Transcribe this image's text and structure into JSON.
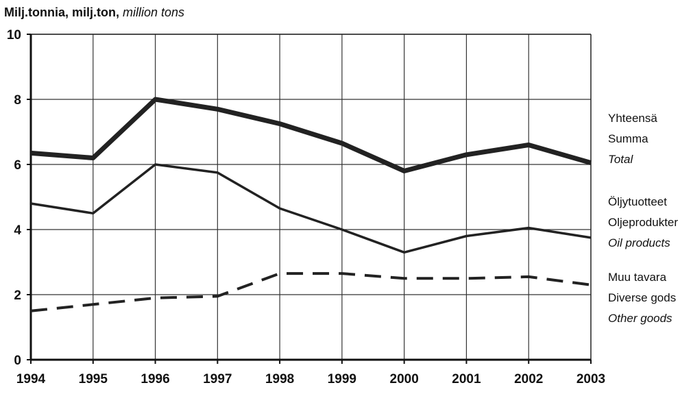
{
  "chart_data": {
    "type": "line",
    "ylabel": {
      "part1": "Milj.tonnia, milj.ton, ",
      "part2": "million tons"
    },
    "x": [
      "1994",
      "1995",
      "1996",
      "1997",
      "1998",
      "1999",
      "2000",
      "2001",
      "2002",
      "2003"
    ],
    "ylim": [
      0,
      10
    ],
    "yticks": [
      "0",
      "2",
      "4",
      "6",
      "8",
      "10"
    ],
    "grid": true,
    "legend_placement": "right",
    "series": [
      {
        "key": "total",
        "labels": [
          "Yhteensä",
          "Summa",
          "Total"
        ],
        "style": "thick-solid",
        "color": "#222222",
        "values": [
          6.35,
          6.2,
          8.0,
          7.7,
          7.25,
          6.65,
          5.8,
          6.3,
          6.6,
          6.05
        ]
      },
      {
        "key": "oil",
        "labels": [
          "Öljytuotteet",
          "Oljeprodukter",
          "Oil products"
        ],
        "style": "solid",
        "color": "#222222",
        "values": [
          4.8,
          4.5,
          6.0,
          5.75,
          4.65,
          4.0,
          3.3,
          3.8,
          4.05,
          3.75
        ]
      },
      {
        "key": "other",
        "labels": [
          "Muu tavara",
          "Diverse gods",
          "Other goods"
        ],
        "style": "dashed",
        "color": "#222222",
        "values": [
          1.5,
          1.7,
          1.9,
          1.95,
          2.65,
          2.65,
          2.5,
          2.5,
          2.55,
          2.3
        ]
      }
    ]
  }
}
